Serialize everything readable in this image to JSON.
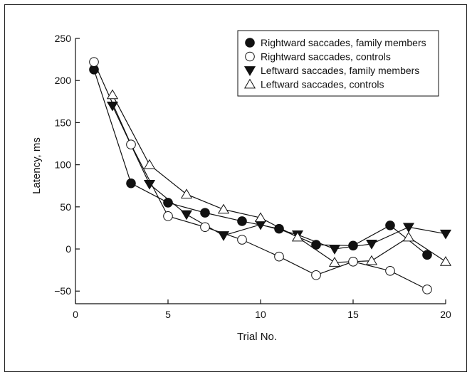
{
  "chart_data": {
    "type": "line",
    "xlabel": "Trial No.",
    "ylabel": "Latency, ms",
    "xlim": [
      0,
      20
    ],
    "ylim": [
      -65,
      250
    ],
    "xticks": [
      0,
      5,
      10,
      15,
      20
    ],
    "yticks": [
      -50,
      0,
      50,
      100,
      150,
      200,
      250
    ],
    "grid": false,
    "legend_position": "top-right",
    "series": [
      {
        "name": "Rightward saccades, family members",
        "marker": "filled-circle",
        "x": [
          1,
          3,
          5,
          7,
          9,
          11,
          13,
          15,
          17,
          19
        ],
        "y": [
          213,
          78,
          55,
          43,
          33,
          24,
          5,
          4,
          28,
          -7
        ]
      },
      {
        "name": "Rightward saccades, controls",
        "marker": "open-circle",
        "x": [
          1,
          3,
          5,
          7,
          9,
          11,
          13,
          15,
          17,
          19
        ],
        "y": [
          222,
          124,
          39,
          26,
          11,
          -9,
          -31,
          -15,
          -26,
          -48
        ]
      },
      {
        "name": "Leftward saccades, family members",
        "marker": "filled-triangle-down",
        "x": [
          2,
          4,
          6,
          8,
          10,
          12,
          14,
          16,
          18,
          20
        ],
        "y": [
          170,
          77,
          41,
          16,
          29,
          17,
          0,
          6,
          26,
          18
        ]
      },
      {
        "name": "Leftward saccades, controls",
        "marker": "open-triangle-up",
        "x": [
          2,
          4,
          6,
          8,
          10,
          12,
          14,
          16,
          18,
          20
        ],
        "y": [
          183,
          100,
          65,
          47,
          37,
          14,
          -16,
          -14,
          14,
          -15
        ]
      }
    ]
  }
}
